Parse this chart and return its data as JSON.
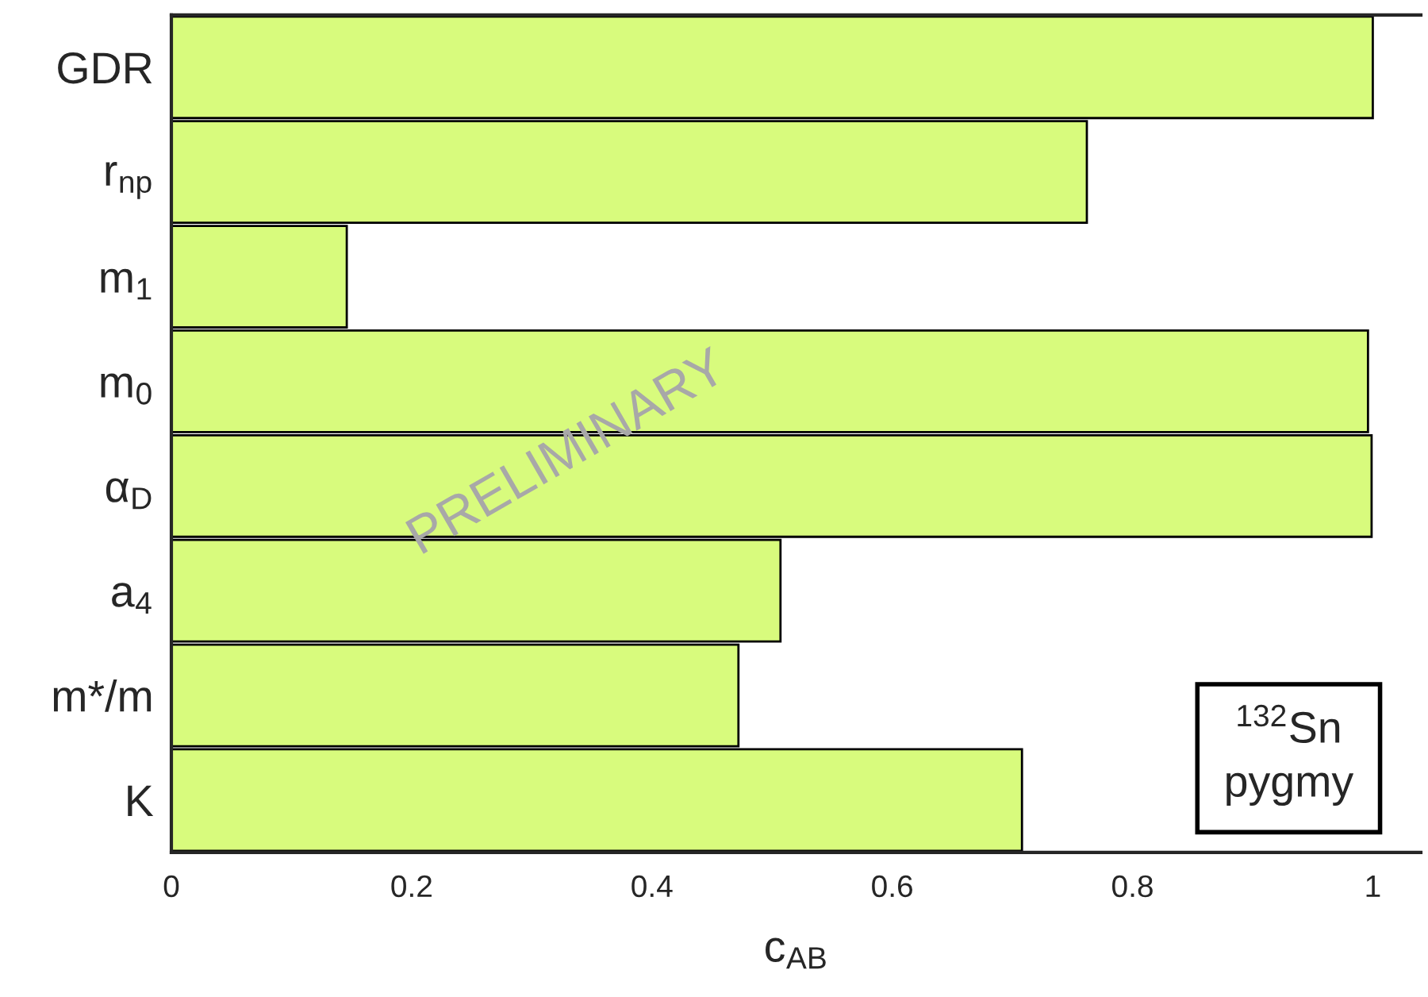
{
  "chart_data": {
    "type": "bar",
    "orientation": "horizontal",
    "categories": [
      "GDR",
      "r$_{np}$",
      "m$_{1}$",
      "m$_{0}$",
      "α$_{D}$",
      "a$_{4}$",
      "m*/m",
      "K"
    ],
    "values": [
      1.0,
      0.762,
      0.146,
      0.996,
      0.999,
      0.507,
      0.472,
      0.708
    ],
    "color": "#d8fb7d",
    "xlim": [
      0,
      1.04
    ],
    "xticks": [
      0,
      0.2,
      0.4,
      0.6,
      0.8,
      1
    ],
    "xlabel": "c$_{AB}$",
    "annotations": [
      "$^{132}$Sn\npygmy",
      "PRELIMINARY"
    ]
  }
}
